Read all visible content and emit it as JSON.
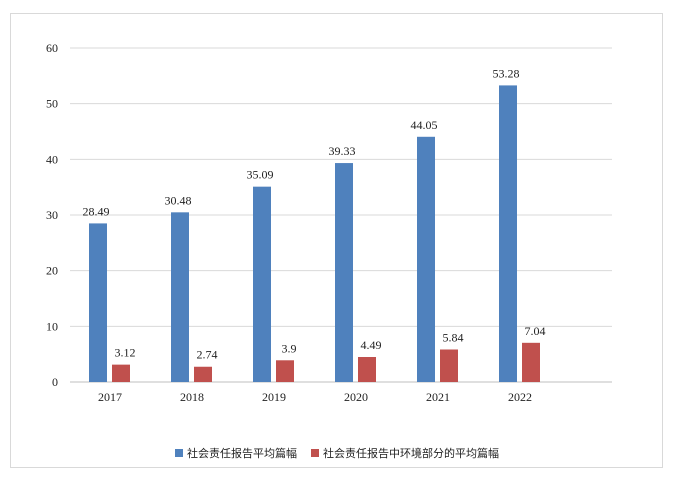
{
  "chart_data": {
    "type": "bar",
    "categories": [
      "2017",
      "2018",
      "2019",
      "2020",
      "2021",
      "2022"
    ],
    "series": [
      {
        "name": "社会责任报告平均篇幅",
        "color": "#4f81bd",
        "values": [
          28.49,
          30.48,
          35.09,
          39.33,
          44.05,
          53.28
        ],
        "labels": [
          "28.49",
          "30.48",
          "35.09",
          "39.33",
          "44.05",
          "53.28"
        ]
      },
      {
        "name": "社会责任报告中环境部分的平均篇幅",
        "color": "#c0504d",
        "values": [
          3.12,
          2.74,
          3.9,
          4.49,
          5.84,
          7.04
        ],
        "labels": [
          "3.12",
          "2.74",
          "3.9",
          "4.49",
          "5.84",
          "7.04"
        ]
      }
    ],
    "ylim": [
      0,
      60
    ],
    "yticks": [
      "0",
      "10",
      "20",
      "30",
      "40",
      "50",
      "60"
    ],
    "grid": true,
    "legend_position": "bottom",
    "title": "",
    "xlabel": "",
    "ylabel": ""
  }
}
